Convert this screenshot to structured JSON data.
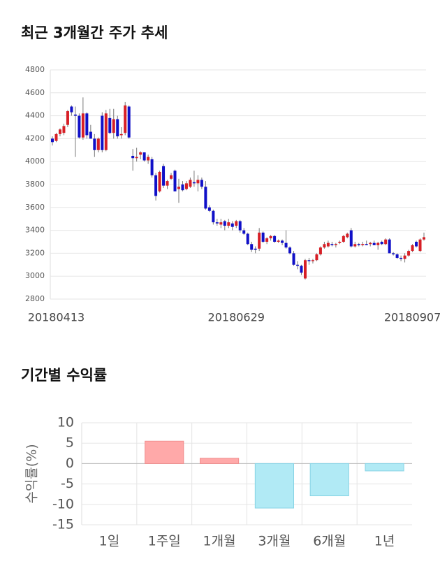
{
  "chart_data": [
    {
      "type": "candlestick",
      "title": "최근 3개월간 주가 추세",
      "categories": [
        null,
        "20180413",
        null,
        null,
        null,
        null,
        null,
        null,
        null,
        null,
        null,
        null,
        null,
        null,
        null,
        null,
        null,
        null,
        null,
        null,
        null,
        null,
        null,
        null,
        null,
        null,
        null,
        null,
        null,
        null,
        null,
        null,
        null,
        null,
        null,
        null,
        null,
        null,
        null,
        null,
        null,
        null,
        null,
        null,
        null,
        null,
        null,
        null,
        "20180629",
        null,
        null,
        null,
        null,
        null,
        null,
        null,
        null,
        null,
        null,
        null,
        null,
        null,
        null,
        null,
        null,
        null,
        null,
        null,
        null,
        null,
        null,
        null,
        null,
        null,
        null,
        null,
        null,
        null,
        null,
        null,
        null,
        null,
        null,
        null,
        null,
        null,
        null,
        null,
        null,
        null,
        null,
        null,
        null,
        null,
        "20180907",
        null,
        null,
        null
      ],
      "open": [
        4200,
        4180,
        4240,
        4250,
        4320,
        4480,
        4410,
        4400,
        4210,
        4420,
        4260,
        4200,
        4100,
        4400,
        4100,
        4380,
        4250,
        4370,
        4230,
        4250,
        4480,
        4050,
        4030,
        4060,
        4080,
        4010,
        4020,
        3880,
        3740,
        3960,
        3790,
        3850,
        3920,
        3760,
        3800,
        3760,
        3780,
        3820,
        3810,
        3840,
        3780,
        3600,
        3570,
        3470,
        3450,
        3480,
        3440,
        3460,
        3440,
        3480,
        3400,
        3370,
        3280,
        3240,
        3240,
        3380,
        3300,
        3330,
        3350,
        3300,
        3310,
        3290,
        3250,
        3200,
        3100,
        3090,
        2980,
        3140,
        3130,
        3140,
        3190,
        3250,
        3260,
        3280,
        3270,
        3290,
        3300,
        3340,
        3400,
        3260,
        3280,
        3270,
        3280,
        3280,
        3290,
        3270,
        3300,
        3280,
        3320,
        3200,
        3190,
        3160,
        3150,
        3180,
        3220,
        3300,
        3220,
        3320
      ],
      "high": [
        4220,
        4250,
        4290,
        4330,
        4450,
        4490,
        4480,
        4420,
        4560,
        4430,
        4320,
        4240,
        4210,
        4430,
        4450,
        4460,
        4460,
        4400,
        4300,
        4520,
        4490,
        4110,
        4120,
        4090,
        4080,
        4060,
        4040,
        3900,
        3920,
        3980,
        3840,
        3900,
        3930,
        3850,
        3830,
        3830,
        3860,
        3920,
        3880,
        3860,
        3830,
        3620,
        3580,
        3500,
        3500,
        3490,
        3500,
        3480,
        3490,
        3490,
        3420,
        3380,
        3300,
        3260,
        3420,
        3390,
        3340,
        3360,
        3360,
        3320,
        3320,
        3400,
        3260,
        3220,
        3130,
        3100,
        3150,
        3160,
        3150,
        3200,
        3260,
        3300,
        3310,
        3300,
        3290,
        3310,
        3360,
        3380,
        3420,
        3300,
        3290,
        3300,
        3310,
        3300,
        3310,
        3300,
        3310,
        3330,
        3330,
        3210,
        3200,
        3180,
        3200,
        3230,
        3280,
        3310,
        3330,
        3380
      ],
      "low": [
        4140,
        4170,
        4220,
        4230,
        4300,
        4400,
        4040,
        4200,
        4190,
        4200,
        4200,
        4040,
        4080,
        4080,
        4090,
        4240,
        4200,
        4200,
        4200,
        4230,
        4200,
        3920,
        4000,
        4020,
        4000,
        3980,
        3860,
        3660,
        3730,
        3770,
        3760,
        3840,
        3740,
        3640,
        3740,
        3750,
        3770,
        3780,
        3740,
        3760,
        3580,
        3560,
        3450,
        3440,
        3420,
        3400,
        3420,
        3400,
        3420,
        3380,
        3360,
        3270,
        3210,
        3200,
        3220,
        3290,
        3280,
        3310,
        3290,
        3290,
        3270,
        3240,
        3190,
        3090,
        3060,
        3010,
        2970,
        3100,
        3110,
        3130,
        3180,
        3240,
        3250,
        3260,
        3250,
        3280,
        3290,
        3330,
        3250,
        3250,
        3260,
        3260,
        3270,
        3260,
        3270,
        3230,
        3270,
        3270,
        3200,
        3180,
        3150,
        3130,
        3120,
        3170,
        3210,
        3250,
        3210,
        3310
      ],
      "close": [
        4170,
        4240,
        4280,
        4310,
        4440,
        4430,
        4400,
        4210,
        4420,
        4230,
        4200,
        4100,
        4200,
        4100,
        4420,
        4250,
        4370,
        4220,
        4240,
        4490,
        4210,
        4030,
        4040,
        4080,
        4010,
        4040,
        3880,
        3700,
        3910,
        3790,
        3830,
        3880,
        3740,
        3780,
        3750,
        3810,
        3840,
        3810,
        3840,
        3780,
        3590,
        3570,
        3470,
        3460,
        3470,
        3440,
        3470,
        3430,
        3480,
        3400,
        3370,
        3280,
        3230,
        3230,
        3380,
        3300,
        3330,
        3350,
        3300,
        3310,
        3290,
        3250,
        3200,
        3100,
        3090,
        3030,
        3140,
        3130,
        3140,
        3190,
        3250,
        3280,
        3290,
        3270,
        3280,
        3300,
        3350,
        3370,
        3260,
        3280,
        3270,
        3280,
        3270,
        3290,
        3270,
        3290,
        3280,
        3320,
        3200,
        3190,
        3160,
        3150,
        3180,
        3220,
        3270,
        3260,
        3320,
        3340
      ],
      "color_up": "#d71f26",
      "color_down": "#1010c8",
      "ylim": [
        2800,
        4800
      ],
      "yticks": [
        2800,
        3000,
        3200,
        3400,
        3600,
        3800,
        4000,
        4200,
        4400,
        4600,
        4800
      ],
      "grid": true
    },
    {
      "type": "bar",
      "title": "기간별 수익률",
      "ylabel": "수익률(%)",
      "categories": [
        "1일",
        "1주일",
        "1개월",
        "3개월",
        "6개월",
        "1년"
      ],
      "values": [
        0,
        5.5,
        1.3,
        -10.9,
        -7.9,
        -1.8
      ],
      "color_up": "#ffa9a9",
      "color_down": "#b1eaf5",
      "ylim": [
        -15,
        10
      ],
      "yticks": [
        -15,
        -10,
        -5,
        0,
        5,
        10
      ],
      "grid": true
    }
  ]
}
